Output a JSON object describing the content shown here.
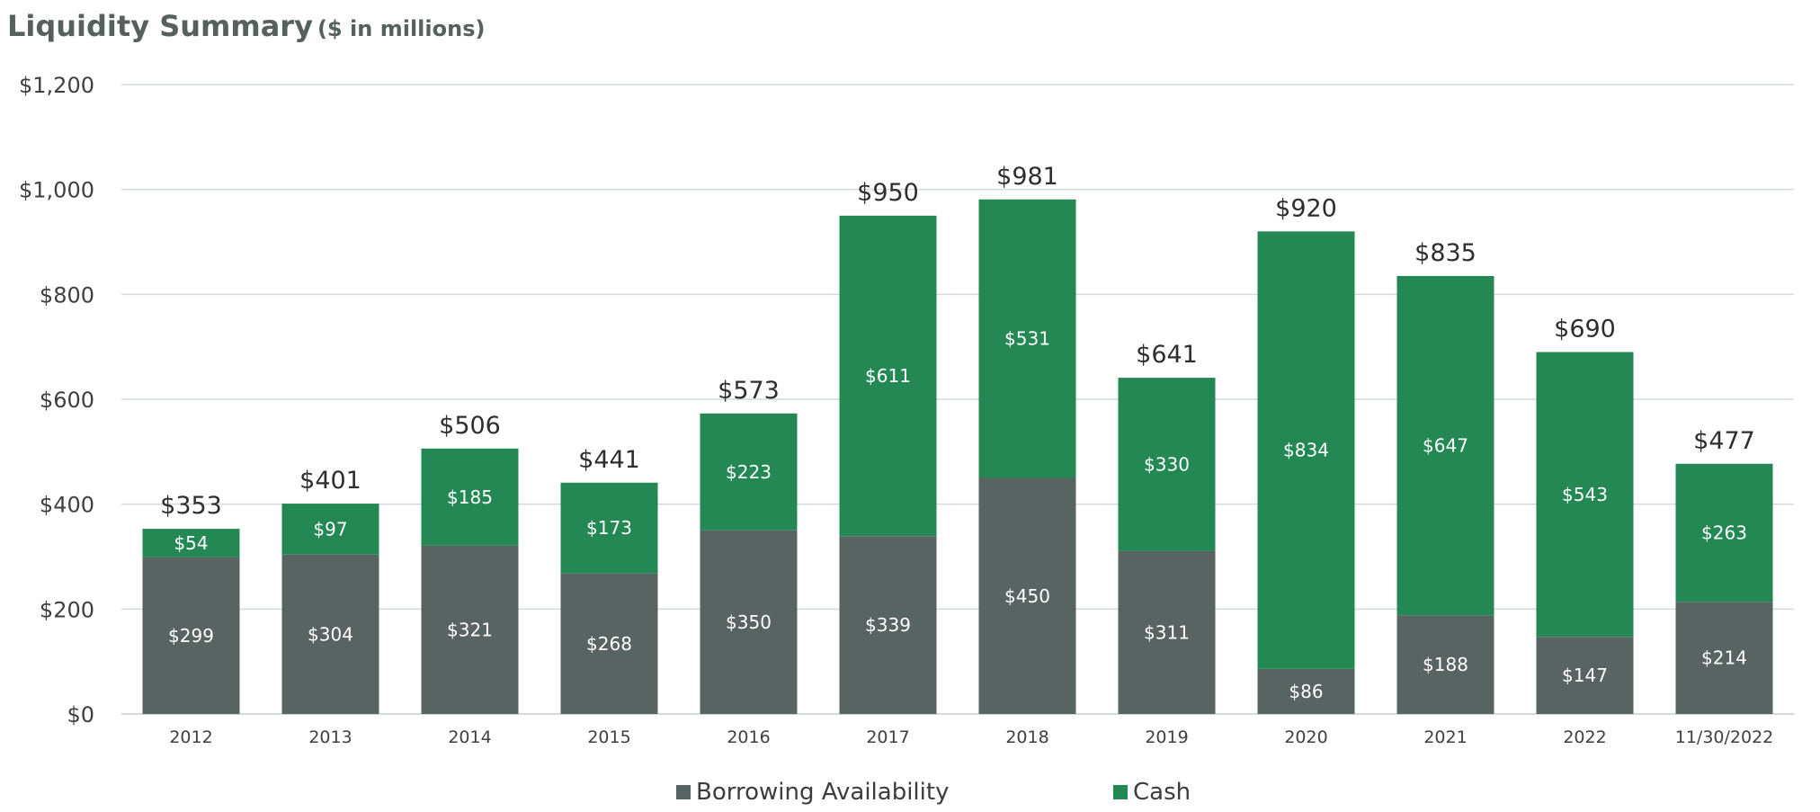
{
  "title": {
    "main": "Liquidity Summary",
    "sub": "($ in millions)"
  },
  "chart_data": {
    "type": "bar",
    "stacked": true,
    "categories": [
      "2012",
      "2013",
      "2014",
      "2015",
      "2016",
      "2017",
      "2018",
      "2019",
      "2020",
      "2021",
      "2022",
      "11/30/2022"
    ],
    "series": [
      {
        "name": "Borrowing Availability",
        "color": "#586462",
        "values": [
          299,
          304,
          321,
          268,
          350,
          339,
          450,
          311,
          86,
          188,
          147,
          214
        ],
        "labels": [
          "$299",
          "$304",
          "$321",
          "$268",
          "$350",
          "$339",
          "$450",
          "$311",
          "$86",
          "$188",
          "$147",
          "$214"
        ]
      },
      {
        "name": "Cash",
        "color": "#248854",
        "values": [
          54,
          97,
          185,
          173,
          223,
          611,
          531,
          330,
          834,
          647,
          543,
          263
        ],
        "labels": [
          "$54",
          "$97",
          "$185",
          "$173",
          "$223",
          "$611",
          "$531",
          "$330",
          "$834",
          "$647",
          "$543",
          "$263"
        ]
      }
    ],
    "totals": [
      353,
      401,
      506,
      441,
      573,
      950,
      981,
      641,
      920,
      835,
      690,
      477
    ],
    "total_labels": [
      "$353",
      "$401",
      "$506",
      "$441",
      "$573",
      "$950",
      "$981",
      "$641",
      "$920",
      "$835",
      "$690",
      "$477"
    ],
    "ylim": [
      0,
      1200
    ],
    "yticks": [
      0,
      200,
      400,
      600,
      800,
      1000,
      1200
    ],
    "ytick_labels": [
      "$0",
      "$200",
      "$400",
      "$600",
      "$800",
      "$1,000",
      "$1,200"
    ],
    "grid": true,
    "legend_position": "bottom"
  },
  "legend": {
    "items": [
      {
        "label": "Borrowing Availability",
        "color": "#586462"
      },
      {
        "label": "Cash",
        "color": "#248854"
      }
    ]
  }
}
